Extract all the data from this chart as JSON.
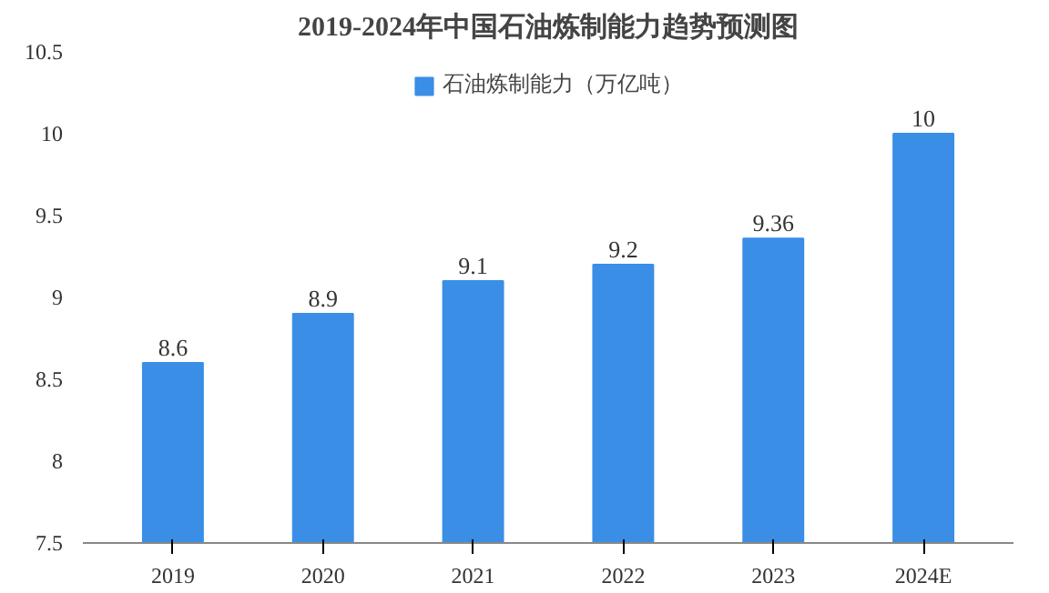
{
  "chart_data": {
    "type": "bar",
    "title": "2019-2024年中国石油炼制能力趋势预测图",
    "categories": [
      "2019",
      "2020",
      "2021",
      "2022",
      "2023",
      "2024E"
    ],
    "series": [
      {
        "name": "石油炼制能力（万亿吨）",
        "color": "#3a8ee6",
        "values": [
          8.6,
          8.9,
          9.1,
          9.2,
          9.36,
          10
        ]
      }
    ],
    "ylim": [
      7.5,
      10.5
    ],
    "yticks": [
      7.5,
      8,
      8.5,
      9,
      9.5,
      10,
      10.5
    ],
    "data_labels": true,
    "legend": "top",
    "grid": false
  }
}
